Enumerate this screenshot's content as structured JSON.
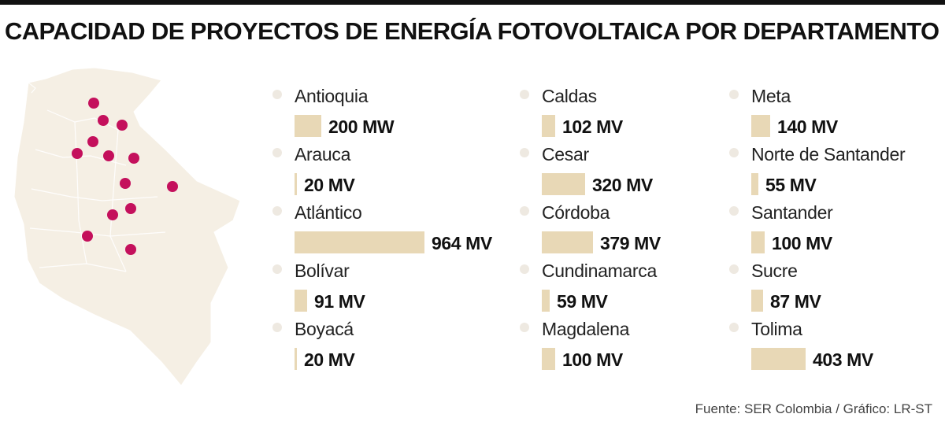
{
  "title": "CAPACIDAD DE PROYECTOS DE ENERGÍA FOTOVOLTAICA POR DEPARTAMENTO",
  "source": "Fuente: SER Colombia / Gráfico: LR-ST",
  "colors": {
    "bar": "#e8d8b6",
    "bullet": "#eee9e1",
    "map": "#f5efe4",
    "dot": "#c4105c"
  },
  "chart_data": {
    "type": "bar",
    "orientation": "horizontal",
    "title": "CAPACIDAD DE PROYECTOS DE ENERGÍA FOTOVOLTAICA POR DEPARTAMENTO",
    "categories": [
      "Antioquia",
      "Arauca",
      "Atlántico",
      "Bolívar",
      "Boyacá",
      "Caldas",
      "Cesar",
      "Córdoba",
      "Cundinamarca",
      "Magdalena",
      "Meta",
      "Norte de Santander",
      "Santander",
      "Sucre",
      "Tolima"
    ],
    "values": [
      200,
      20,
      964,
      91,
      20,
      102,
      320,
      379,
      59,
      100,
      140,
      55,
      100,
      87,
      403
    ],
    "value_labels": [
      "200 MW",
      "20 MV",
      "964 MV",
      "91 MV",
      "20 MV",
      "102 MV",
      "320 MV",
      "379 MV",
      "59 MV",
      "100 MV",
      "140 MV",
      "55 MV",
      "100 MV",
      "87 MV",
      "403 MV"
    ],
    "columns": 3,
    "per_column": 5,
    "grid": false
  }
}
